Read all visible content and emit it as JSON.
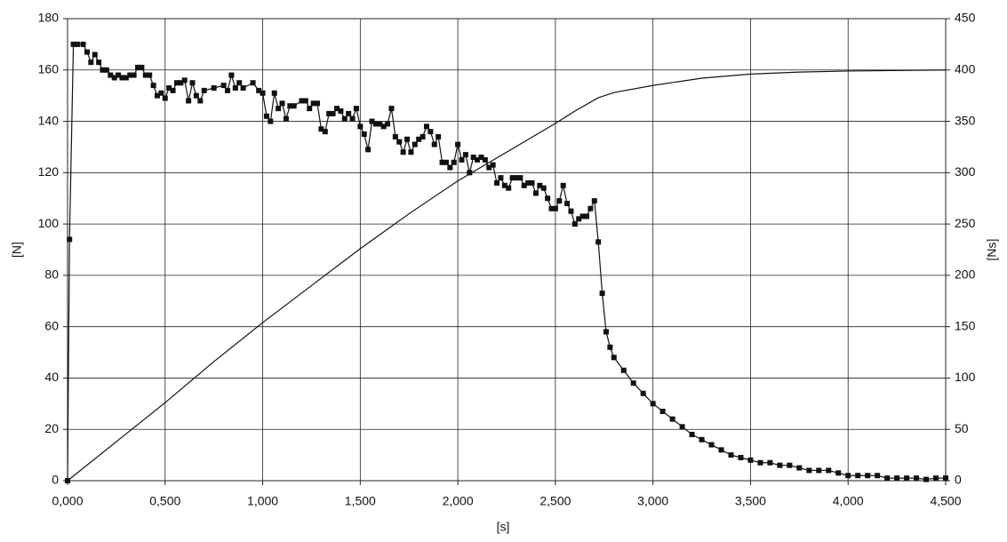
{
  "chart_data": {
    "type": "line",
    "xlabel": "[s]",
    "ylabel": "[N]",
    "y2label": "[Ns]",
    "xlim": [
      0,
      4.5
    ],
    "xticks": [
      {
        "value": 0,
        "label": "0,000"
      },
      {
        "value": 0.5,
        "label": "0,500"
      },
      {
        "value": 1,
        "label": "1,000"
      },
      {
        "value": 1.5,
        "label": "1,500"
      },
      {
        "value": 2,
        "label": "2,000"
      },
      {
        "value": 2.5,
        "label": "2,500"
      },
      {
        "value": 3,
        "label": "3,000"
      },
      {
        "value": 3.5,
        "label": "3,500"
      },
      {
        "value": 4,
        "label": "4,000"
      },
      {
        "value": 4.5,
        "label": "4,500"
      }
    ],
    "ylim": [
      0,
      180
    ],
    "yticks": [
      0,
      20,
      40,
      60,
      80,
      100,
      120,
      140,
      160,
      180
    ],
    "y2lim": [
      0,
      450
    ],
    "y2ticks": [
      0,
      50,
      100,
      150,
      200,
      250,
      300,
      350,
      400,
      450
    ],
    "grid": true,
    "series": [
      {
        "color": "#111111",
        "markers": true,
        "x": [
          0,
          0.01,
          0.03,
          0.05,
          0.08,
          0.1,
          0.12,
          0.14,
          0.16,
          0.18,
          0.2,
          0.22,
          0.24,
          0.26,
          0.28,
          0.3,
          0.32,
          0.34,
          0.36,
          0.38,
          0.4,
          0.42,
          0.44,
          0.46,
          0.48,
          0.5,
          0.52,
          0.54,
          0.56,
          0.58,
          0.6,
          0.62,
          0.64,
          0.66,
          0.68,
          0.7,
          0.75,
          0.8,
          0.82,
          0.84,
          0.86,
          0.88,
          0.9,
          0.95,
          0.98,
          1.0,
          1.02,
          1.04,
          1.06,
          1.08,
          1.1,
          1.12,
          1.14,
          1.16,
          1.2,
          1.22,
          1.24,
          1.26,
          1.28,
          1.3,
          1.32,
          1.34,
          1.36,
          1.38,
          1.4,
          1.42,
          1.44,
          1.46,
          1.48,
          1.5,
          1.52,
          1.54,
          1.56,
          1.58,
          1.6,
          1.62,
          1.64,
          1.66,
          1.68,
          1.7,
          1.72,
          1.74,
          1.76,
          1.78,
          1.8,
          1.82,
          1.84,
          1.86,
          1.88,
          1.9,
          1.92,
          1.94,
          1.96,
          1.98,
          2.0,
          2.02,
          2.04,
          2.06,
          2.08,
          2.1,
          2.12,
          2.14,
          2.16,
          2.18,
          2.2,
          2.22,
          2.24,
          2.26,
          2.28,
          2.3,
          2.32,
          2.34,
          2.36,
          2.38,
          2.4,
          2.42,
          2.44,
          2.46,
          2.48,
          2.5,
          2.52,
          2.54,
          2.56,
          2.58,
          2.6,
          2.62,
          2.64,
          2.66,
          2.68,
          2.7,
          2.72,
          2.74,
          2.76,
          2.78,
          2.8,
          2.85,
          2.9,
          2.95,
          3.0,
          3.05,
          3.1,
          3.15,
          3.2,
          3.25,
          3.3,
          3.35,
          3.4,
          3.45,
          3.5,
          3.55,
          3.6,
          3.65,
          3.7,
          3.75,
          3.8,
          3.85,
          3.9,
          3.95,
          4.0,
          4.05,
          4.1,
          4.15,
          4.2,
          4.25,
          4.3,
          4.35,
          4.4,
          4.45,
          4.5
        ],
        "values": [
          0,
          94,
          170,
          170,
          170,
          167,
          163,
          166,
          163,
          160,
          160,
          158,
          157,
          158,
          157,
          157,
          158,
          158,
          161,
          161,
          158,
          158,
          154,
          150,
          151,
          149,
          153,
          152,
          155,
          155,
          156,
          148,
          155,
          150,
          148,
          152,
          153,
          154,
          152,
          158,
          153,
          155,
          153,
          155,
          152,
          151,
          142,
          140,
          151,
          145,
          147,
          141,
          146,
          146,
          148,
          148,
          145,
          147,
          147,
          137,
          136,
          143,
          143,
          145,
          144,
          141,
          143,
          141,
          145,
          138,
          135,
          129,
          140,
          139,
          139,
          138,
          139,
          145,
          134,
          132,
          128,
          133,
          128,
          131,
          133,
          134,
          138,
          136,
          131,
          134,
          124,
          124,
          122,
          124,
          131,
          125,
          127,
          120,
          126,
          125,
          126,
          125,
          122,
          123,
          116,
          118,
          115,
          114,
          118,
          118,
          118,
          115,
          116,
          116,
          112,
          115,
          114,
          110,
          106,
          106,
          109,
          115,
          108,
          105,
          100,
          102,
          103,
          103,
          106,
          109,
          93,
          73,
          58,
          52,
          48,
          43,
          38,
          34,
          30,
          27,
          24,
          21,
          18,
          16,
          14,
          12,
          10,
          9,
          8,
          7,
          7,
          6,
          6,
          5,
          4,
          4,
          4,
          3,
          2,
          2,
          2,
          2,
          1,
          1,
          1,
          1,
          0.5,
          1,
          1
        ]
      },
      {
        "color": "#111111",
        "markers": false,
        "axis": "y2",
        "x": [
          0,
          0.25,
          0.5,
          0.75,
          1.0,
          1.25,
          1.5,
          1.75,
          2.0,
          2.25,
          2.5,
          2.6,
          2.72,
          2.8,
          3.0,
          3.25,
          3.5,
          3.75,
          4.0,
          4.5
        ],
        "values": [
          0,
          38,
          76,
          116,
          154,
          190,
          226,
          260,
          292,
          320,
          348,
          360,
          373,
          378,
          385,
          392,
          396,
          398,
          399,
          400
        ]
      }
    ]
  }
}
